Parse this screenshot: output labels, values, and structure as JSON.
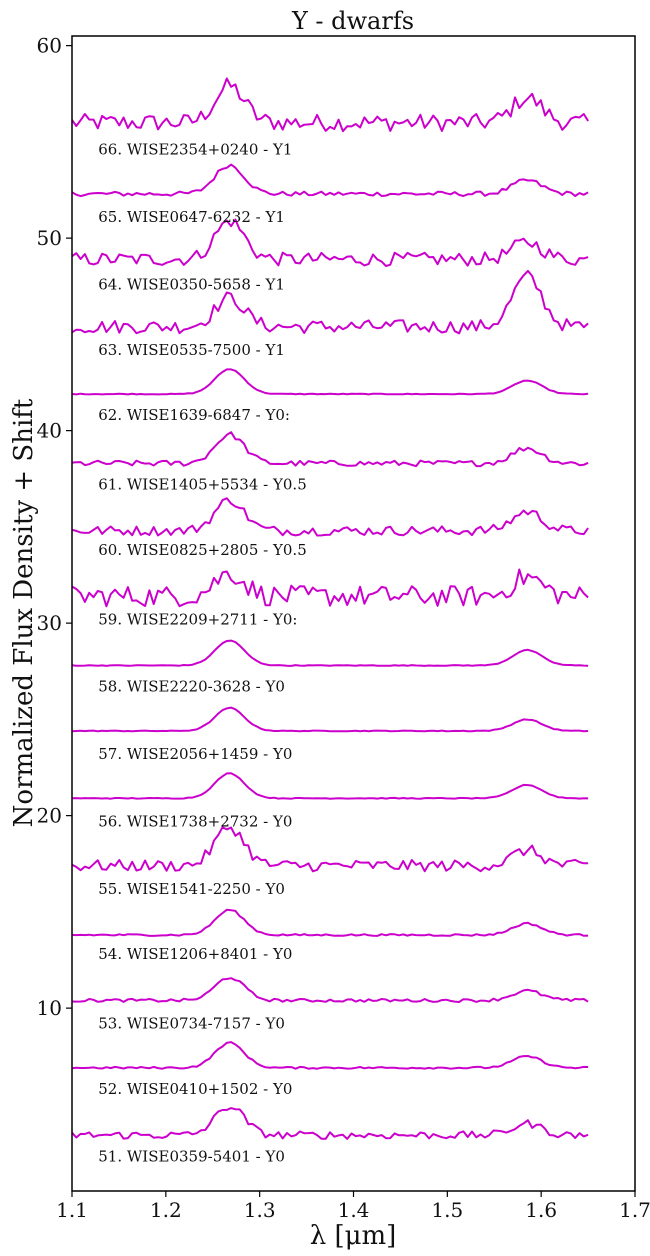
{
  "chart_data": {
    "type": "line",
    "title": "Y - dwarfs",
    "xlabel": "λ [μm]",
    "ylabel": "Normalized Flux Density + Shift",
    "xlim": [
      1.1,
      1.7
    ],
    "ylim": [
      0.5,
      60.5
    ],
    "xticks": [
      1.1,
      1.2,
      1.3,
      1.4,
      1.5,
      1.6,
      1.7
    ],
    "xtick_labels": [
      "1.1",
      "1.2",
      "1.3",
      "1.4",
      "1.5",
      "1.6",
      "1.7"
    ],
    "yticks": [
      10,
      20,
      30,
      40,
      50,
      60
    ],
    "ytick_labels": [
      "10",
      "20",
      "30",
      "40",
      "50",
      "60"
    ],
    "grid": false,
    "line_color": "#cc00cc",
    "x_range": [
      1.1,
      1.65
    ],
    "series": [
      {
        "name": "66. WISE2354+0240 - Y1",
        "offset": 56.0,
        "j_peak": 57.9,
        "h_peak": 57.3,
        "noise": 0.45,
        "label_y": 54.6
      },
      {
        "name": "65. WISE0647-6232 - Y1",
        "offset": 52.3,
        "j_peak": 53.8,
        "h_peak": 53.0,
        "noise": 0.12,
        "label_y": 51.1
      },
      {
        "name": "64. WISE0350-5658 - Y1",
        "offset": 48.9,
        "j_peak": 50.9,
        "h_peak": 49.8,
        "noise": 0.35,
        "label_y": 47.6
      },
      {
        "name": "63. WISE0535-7500 - Y1",
        "offset": 45.4,
        "j_peak": 46.9,
        "h_peak": 48.0,
        "noise": 0.35,
        "label_y": 44.2
      },
      {
        "name": "62. WISE1639-6847 - Y0:",
        "offset": 41.9,
        "j_peak": 43.2,
        "h_peak": 42.6,
        "noise": 0.02,
        "label_y": 40.8
      },
      {
        "name": "61. WISE1405+5534 - Y0.5",
        "offset": 38.3,
        "j_peak": 39.8,
        "h_peak": 39.1,
        "noise": 0.15,
        "label_y": 37.2
      },
      {
        "name": "60. WISE0825+2805 - Y0.5",
        "offset": 34.8,
        "j_peak": 36.4,
        "h_peak": 35.8,
        "noise": 0.25,
        "label_y": 33.8
      },
      {
        "name": "59. WISE2209+2711 - Y0:",
        "offset": 31.4,
        "j_peak": 32.6,
        "h_peak": 32.4,
        "noise": 0.55,
        "label_y": 30.2
      },
      {
        "name": "58. WISE2220-3628 - Y0",
        "offset": 27.8,
        "j_peak": 29.1,
        "h_peak": 28.6,
        "noise": 0.02,
        "label_y": 26.7
      },
      {
        "name": "57. WISE2056+1459 - Y0",
        "offset": 24.4,
        "j_peak": 25.6,
        "h_peak": 25.0,
        "noise": 0.02,
        "label_y": 23.2
      },
      {
        "name": "56. WISE1738+2732 - Y0",
        "offset": 20.9,
        "j_peak": 22.2,
        "h_peak": 21.6,
        "noise": 0.02,
        "label_y": 19.7
      },
      {
        "name": "55. WISE1541-2250 - Y0",
        "offset": 17.4,
        "j_peak": 19.4,
        "h_peak": 18.2,
        "noise": 0.3,
        "label_y": 16.2
      },
      {
        "name": "54. WISE1206+8401 - Y0",
        "offset": 13.8,
        "j_peak": 15.1,
        "h_peak": 14.4,
        "noise": 0.05,
        "label_y": 12.8
      },
      {
        "name": "53. WISE0734-7157 - Y0",
        "offset": 10.4,
        "j_peak": 11.6,
        "h_peak": 10.9,
        "noise": 0.08,
        "label_y": 9.2
      },
      {
        "name": "52. WISE0410+1502 - Y0",
        "offset": 6.9,
        "j_peak": 8.2,
        "h_peak": 7.5,
        "noise": 0.05,
        "label_y": 5.8
      },
      {
        "name": "51. WISE0359-5401 - Y0",
        "offset": 3.4,
        "j_peak": 4.9,
        "h_peak": 4.0,
        "noise": 0.2,
        "label_y": 2.3
      }
    ]
  }
}
